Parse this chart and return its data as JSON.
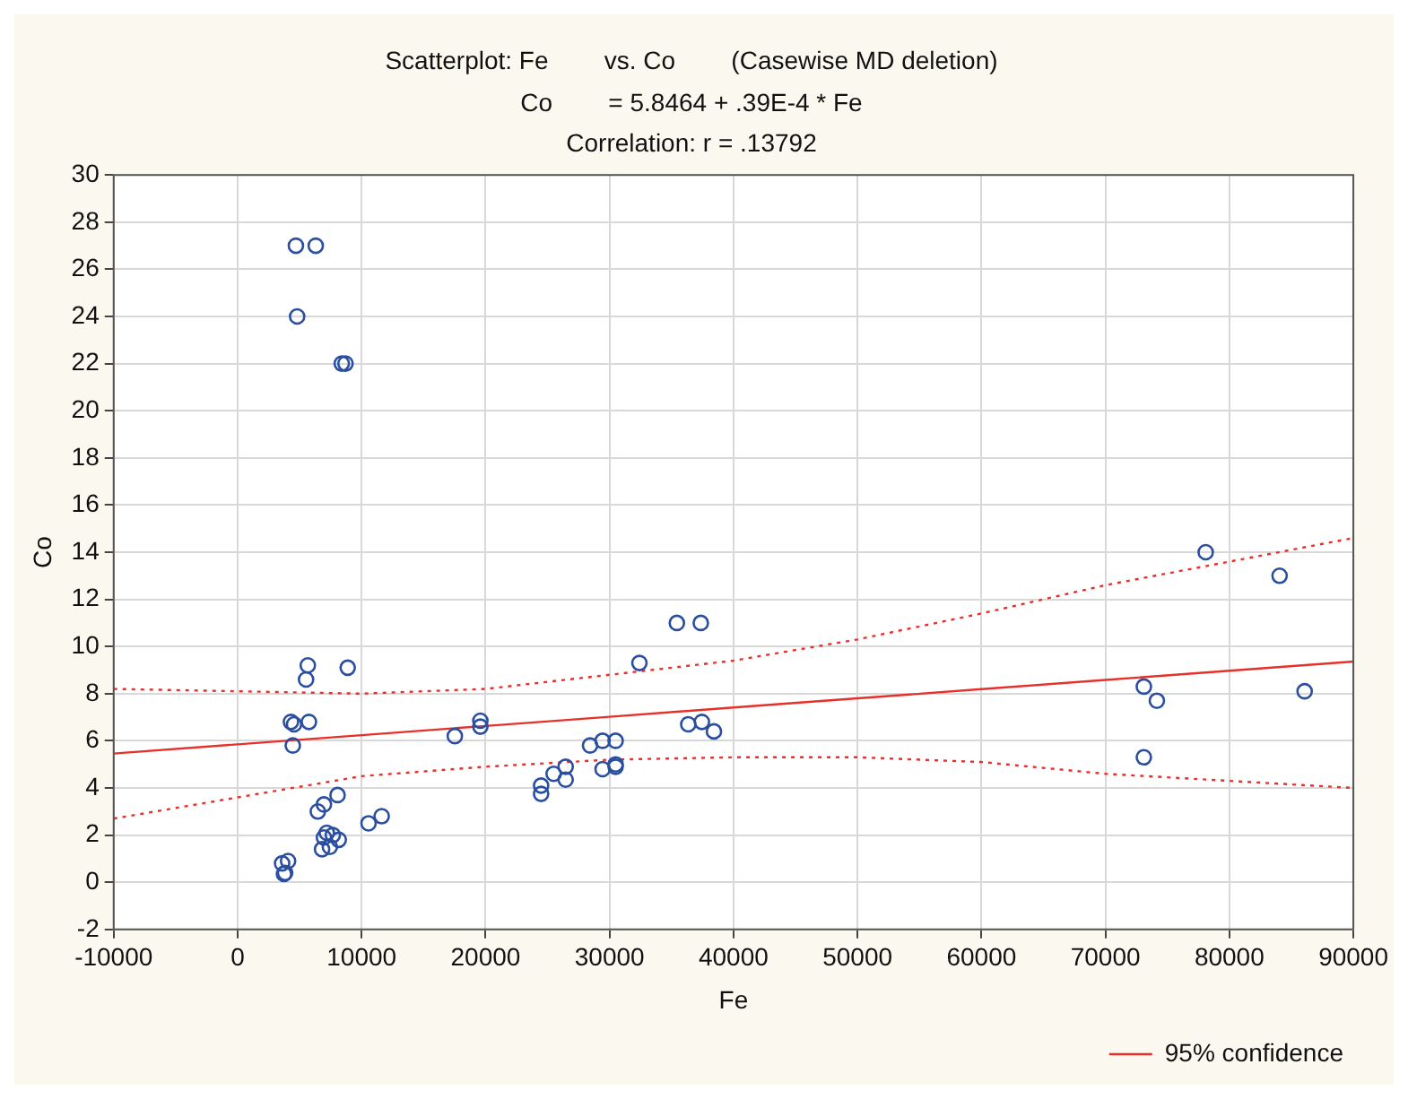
{
  "chart_data": {
    "type": "scatter",
    "title": "Scatterplot: Fe        vs. Co        (Casewise MD deletion)",
    "subtitle": "Co        = 5.8464 + .39E-4 * Fe",
    "annotations": [
      "Correlation: r = .13792"
    ],
    "xlabel": "Fe",
    "ylabel": "Co",
    "xlim": [
      -10000,
      90000
    ],
    "xticks": [
      -10000,
      0,
      10000,
      20000,
      30000,
      40000,
      50000,
      60000,
      70000,
      80000,
      90000
    ],
    "ylim": [
      -2,
      30
    ],
    "yticks": [
      -2,
      0,
      2,
      4,
      6,
      8,
      10,
      12,
      14,
      16,
      18,
      20,
      22,
      24,
      26,
      28,
      30
    ],
    "grid": true,
    "legend": "bottom right",
    "series": [
      {
        "marker": "circle",
        "color": "#2a4ea0",
        "x": [
          4700,
          6300,
          4800,
          8400,
          8700,
          5660,
          5520,
          8880,
          4300,
          4550,
          5750,
          4450,
          8060,
          6960,
          6470,
          7190,
          7680,
          6960,
          8160,
          6810,
          7440,
          10560,
          11620,
          3590,
          4070,
          3830,
          3740,
          17520,
          35430,
          37360,
          32410,
          19580,
          19580,
          36350,
          37450,
          38420,
          28430,
          29440,
          30490,
          26460,
          25490,
          26460,
          29440,
          30490,
          30490,
          24480,
          24480,
          78090,
          84050,
          73100,
          74150,
          86070,
          73100
        ],
        "values": [
          27,
          27,
          24,
          22,
          22,
          9.2,
          8.6,
          9.1,
          6.8,
          6.7,
          6.8,
          5.8,
          3.7,
          3.3,
          3.0,
          2.1,
          2.0,
          1.9,
          1.8,
          1.4,
          1.5,
          2.5,
          2.8,
          0.8,
          0.9,
          0.4,
          0.35,
          6.2,
          11,
          11,
          9.3,
          6.85,
          6.6,
          6.7,
          6.8,
          6.4,
          5.8,
          6,
          6,
          4.9,
          4.6,
          4.35,
          4.8,
          5,
          4.9,
          4.1,
          3.75,
          14,
          13,
          8.3,
          7.7,
          8.1,
          5.3
        ]
      },
      {
        "type": "line",
        "name": "95% confidence",
        "marker": "none",
        "line_style": "solid",
        "color": "#e8302a",
        "x": [
          -10000,
          0,
          10000,
          20000,
          30000,
          40000,
          50000,
          60000,
          70000,
          80000,
          90000
        ],
        "values": [
          5.46,
          5.85,
          6.24,
          6.63,
          7.02,
          7.41,
          7.8,
          8.19,
          8.58,
          8.97,
          9.36
        ]
      },
      {
        "type": "line",
        "marker": "none",
        "line_style": "dotted",
        "color": "#e8302a",
        "x": [
          -10000,
          0,
          10000,
          20000,
          30000,
          40000,
          50000,
          60000,
          70000,
          80000,
          90000
        ],
        "values": [
          2.7,
          3.6,
          4.5,
          4.9,
          5.2,
          5.3,
          5.3,
          5.1,
          4.6,
          4.3,
          4.0
        ]
      },
      {
        "type": "line",
        "marker": "none",
        "line_style": "dotted",
        "color": "#e8302a",
        "x": [
          -10000,
          0,
          10000,
          20000,
          30000,
          40000,
          50000,
          60000,
          70000,
          80000,
          90000
        ],
        "values": [
          8.2,
          8.1,
          8.0,
          8.2,
          8.8,
          9.4,
          10.3,
          11.4,
          12.6,
          13.6,
          14.6
        ]
      }
    ]
  }
}
